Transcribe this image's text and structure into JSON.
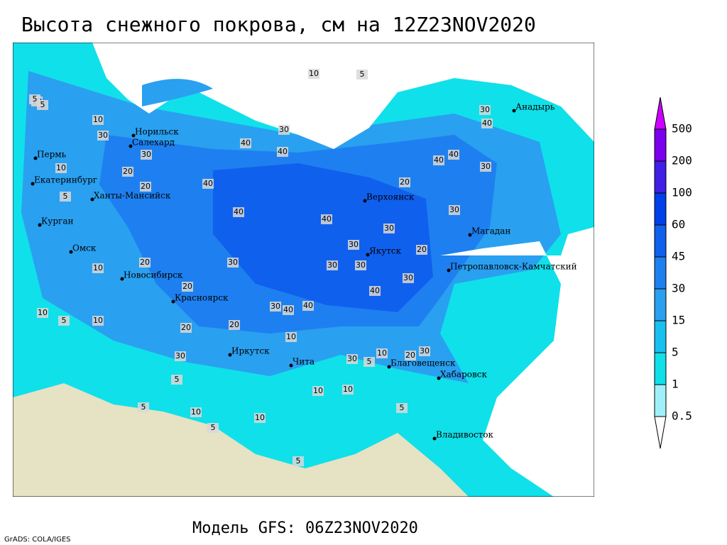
{
  "header": {
    "title": "Высота снежного покрова, см на 12Z23NOV2020"
  },
  "legend": {
    "levels": [
      0.5,
      1,
      5,
      15,
      30,
      45,
      60,
      100,
      200,
      500
    ],
    "colors": [
      "#ffffff",
      "#a0f0fa",
      "#10e0ea",
      "#18c0f0",
      "#2aa0f0",
      "#1e80f0",
      "#1060ee",
      "#0040ea",
      "#4020e6",
      "#7a00ee",
      "#cc00ff"
    ]
  },
  "cities": [
    "Норильск",
    "Салехард",
    "Пермь",
    "Екатеринбург",
    "Ханты-Мансийск",
    "Курган",
    "Омск",
    "Новосибирск",
    "Красноярск",
    "Иркутск",
    "Чита",
    "Благовещенск",
    "Хабаровск",
    "Владивосток",
    "Якутск",
    "Верхоянск",
    "Магадан",
    "Анадырь",
    "Петропавловск-Камчатский"
  ],
  "contour_labels": [
    10,
    5,
    10,
    5,
    10,
    5,
    30,
    30,
    40,
    40,
    10,
    30,
    20,
    20,
    40,
    40,
    40,
    30,
    30,
    30,
    40,
    30,
    20,
    30,
    30,
    40,
    30,
    20,
    30,
    10,
    20,
    20,
    30,
    30,
    40,
    40,
    20,
    20,
    10,
    30,
    10,
    10,
    5,
    10,
    10,
    5,
    10,
    5,
    5,
    5,
    10,
    5,
    5,
    30,
    40,
    40,
    30,
    20,
    10,
    5
  ],
  "footer": {
    "model": "Модель GFS: 06Z23NOV2020",
    "credit": "GrADS: COLA/IGES"
  }
}
